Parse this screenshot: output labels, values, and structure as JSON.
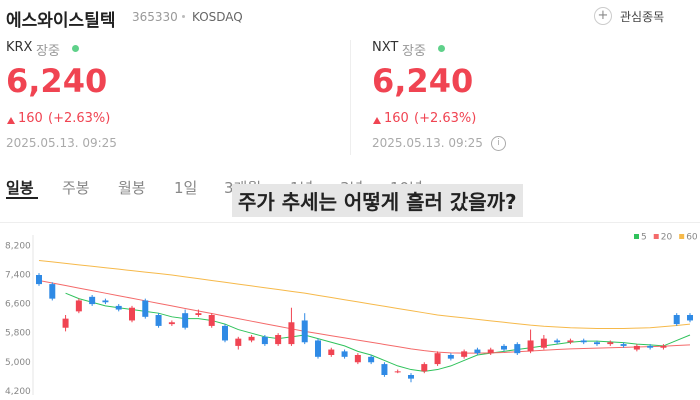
{
  "header": {
    "name": "에스와이스틸텍",
    "code": "365330",
    "market": "KOSDAQ",
    "watch": "관심종목"
  },
  "quotes": [
    {
      "exchange": "KRX",
      "status": "장중",
      "price": "6,240",
      "change": "160",
      "change_pct": "(+2.63%)",
      "time": "2025.05.13. 09:25"
    },
    {
      "exchange": "NXT",
      "status": "장중",
      "price": "6,240",
      "change": "160",
      "change_pct": "(+2.63%)",
      "time": "2025.05.13. 09:25"
    }
  ],
  "tabs": [
    "일봉",
    "주봉",
    "월봉",
    "1일",
    "3개월",
    "1년",
    "3년",
    "10년"
  ],
  "caption": "주가 추세는 어떻게 흘러 갔을까?",
  "chart_data": {
    "type": "candlestick",
    "up_color": "#f04452",
    "down_color": "#2f8ae5",
    "ylim": [
      4100,
      8500
    ],
    "yticks": [
      {
        "value": 4200,
        "label": "4,200"
      },
      {
        "value": 5000,
        "label": "5,000"
      },
      {
        "value": 5800,
        "label": "5,800"
      },
      {
        "value": 6600,
        "label": "6,600"
      },
      {
        "value": 7400,
        "label": "7,400"
      },
      {
        "value": 8200,
        "label": "8,200"
      }
    ],
    "open": [
      7400,
      7150,
      5950,
      6400,
      6800,
      6700,
      6550,
      6150,
      6700,
      6300,
      6050,
      6350,
      6300,
      6000,
      6000,
      5450,
      5600,
      5700,
      5500,
      5500,
      6150,
      5600,
      5200,
      5300,
      5000,
      5150,
      4950,
      4750,
      4650,
      4750,
      4950,
      5200,
      5150,
      5350,
      5250,
      5450,
      5500,
      5300,
      5400,
      5600,
      5550,
      5600,
      5550,
      5500,
      5500,
      5350,
      5450,
      5400,
      6300,
      6300
    ],
    "close": [
      7150,
      6750,
      6200,
      6700,
      6600,
      6650,
      6450,
      6500,
      6250,
      6000,
      6100,
      5950,
      6350,
      6300,
      5600,
      5650,
      5700,
      5500,
      5750,
      6100,
      5550,
      5150,
      5350,
      5150,
      5200,
      5000,
      4650,
      4750,
      4550,
      4950,
      5250,
      5100,
      5300,
      5250,
      5350,
      5350,
      5250,
      5600,
      5650,
      5550,
      5600,
      5550,
      5500,
      5550,
      5450,
      5450,
      5400,
      5450,
      6050,
      6150
    ],
    "high": [
      7450,
      7200,
      6300,
      6750,
      6850,
      6750,
      6600,
      6550,
      6750,
      6350,
      6150,
      6450,
      6450,
      6350,
      6050,
      5700,
      5750,
      5750,
      5800,
      6500,
      6350,
      5650,
      5400,
      5350,
      5250,
      5200,
      5000,
      4800,
      4700,
      5000,
      5300,
      5250,
      5350,
      5400,
      5400,
      5500,
      5550,
      5900,
      5750,
      5650,
      5650,
      5650,
      5600,
      5600,
      5550,
      5500,
      5500,
      5500,
      6350,
      6350
    ],
    "low": [
      7100,
      6700,
      5850,
      6350,
      6550,
      6600,
      6400,
      6100,
      6200,
      5950,
      6000,
      5900,
      6250,
      5950,
      5550,
      5350,
      5550,
      5450,
      5450,
      5450,
      5500,
      5100,
      5150,
      5100,
      4950,
      4950,
      4600,
      4700,
      4450,
      4700,
      4900,
      5050,
      5100,
      5200,
      5200,
      5300,
      5200,
      5250,
      5350,
      5500,
      5500,
      5500,
      5450,
      5450,
      5400,
      5300,
      5350,
      5350,
      6000,
      6100
    ],
    "series": [
      {
        "name": "5",
        "color": "#2fc25b",
        "values": [
          null,
          null,
          6900,
          6750,
          6650,
          6550,
          6500,
          6450,
          6400,
          6350,
          6250,
          6200,
          6200,
          6150,
          6050,
          5900,
          5800,
          5700,
          5650,
          5700,
          5750,
          5650,
          5550,
          5450,
          5300,
          5200,
          5050,
          4900,
          4800,
          4750,
          4800,
          4900,
          5050,
          5200,
          5250,
          5300,
          5350,
          5400,
          5450,
          5500,
          5550,
          5580,
          5580,
          5560,
          5540,
          5500,
          5480,
          5450,
          5600,
          5750
        ]
      },
      {
        "name": "20",
        "color": "#f46a6a",
        "values": [
          7250,
          7180,
          7110,
          7040,
          6970,
          6900,
          6830,
          6760,
          6690,
          6620,
          6550,
          6480,
          6410,
          6340,
          6270,
          6200,
          6130,
          6060,
          5990,
          5920,
          5850,
          5790,
          5730,
          5670,
          5610,
          5550,
          5490,
          5430,
          5370,
          5320,
          5280,
          5260,
          5250,
          5250,
          5260,
          5270,
          5290,
          5310,
          5330,
          5350,
          5370,
          5380,
          5390,
          5400,
          5410,
          5420,
          5430,
          5440,
          5460,
          5480
        ]
      },
      {
        "name": "60",
        "color": "#f6b94a",
        "values": [
          7800,
          7760,
          7720,
          7680,
          7640,
          7600,
          7560,
          7520,
          7480,
          7440,
          7400,
          7350,
          7300,
          7250,
          7200,
          7150,
          7100,
          7050,
          7000,
          6950,
          6900,
          6840,
          6780,
          6720,
          6660,
          6600,
          6540,
          6480,
          6420,
          6360,
          6300,
          6260,
          6220,
          6180,
          6140,
          6100,
          6060,
          6020,
          5990,
          5970,
          5950,
          5940,
          5930,
          5930,
          5930,
          5940,
          5950,
          5980,
          6010,
          6050
        ]
      }
    ]
  }
}
